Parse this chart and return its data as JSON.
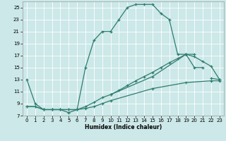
{
  "xlabel": "Humidex (Indice chaleur)",
  "bg_color": "#cce8e8",
  "grid_color": "#ffffff",
  "line_color": "#2e7d6e",
  "xlim": [
    -0.5,
    23.5
  ],
  "ylim": [
    7,
    26
  ],
  "xticks": [
    0,
    1,
    2,
    3,
    4,
    5,
    6,
    7,
    8,
    9,
    10,
    11,
    12,
    13,
    14,
    15,
    16,
    17,
    18,
    19,
    20,
    21,
    22,
    23
  ],
  "yticks": [
    7,
    9,
    11,
    13,
    15,
    17,
    19,
    21,
    23,
    25
  ],
  "line1_x": [
    0,
    1,
    2,
    3,
    4,
    5,
    6,
    7,
    8,
    9,
    10,
    11,
    12,
    13,
    14,
    15,
    16,
    17,
    18,
    19,
    20,
    21
  ],
  "line1_y": [
    13.0,
    9.0,
    8.0,
    8.0,
    8.0,
    7.5,
    8.0,
    15.0,
    19.5,
    21.0,
    21.0,
    23.0,
    25.0,
    25.5,
    25.5,
    25.5,
    24.0,
    23.0,
    17.2,
    17.2,
    15.0,
    15.0
  ],
  "line2_x": [
    10,
    11,
    12,
    13,
    14,
    15,
    16,
    17,
    18,
    19,
    20,
    22,
    23
  ],
  "line2_y": [
    10.5,
    11.2,
    12.0,
    12.8,
    13.5,
    14.2,
    15.0,
    15.8,
    16.5,
    17.2,
    17.2,
    13.2,
    13.0
  ],
  "line3_x": [
    0,
    1,
    2,
    3,
    4,
    5,
    6,
    7,
    8,
    9,
    10,
    15,
    19,
    22,
    23
  ],
  "line3_y": [
    8.5,
    8.5,
    8.0,
    8.0,
    8.0,
    8.0,
    8.0,
    8.2,
    8.5,
    9.0,
    9.5,
    11.5,
    12.5,
    12.8,
    12.8
  ],
  "line4_x": [
    0,
    1,
    2,
    3,
    4,
    5,
    6,
    7,
    8,
    9,
    10,
    15,
    19,
    20,
    21,
    22,
    23
  ],
  "line4_y": [
    8.5,
    8.5,
    8.0,
    8.0,
    8.0,
    8.0,
    8.0,
    8.5,
    9.2,
    10.0,
    10.5,
    13.5,
    17.2,
    16.8,
    16.0,
    15.2,
    13.0
  ]
}
